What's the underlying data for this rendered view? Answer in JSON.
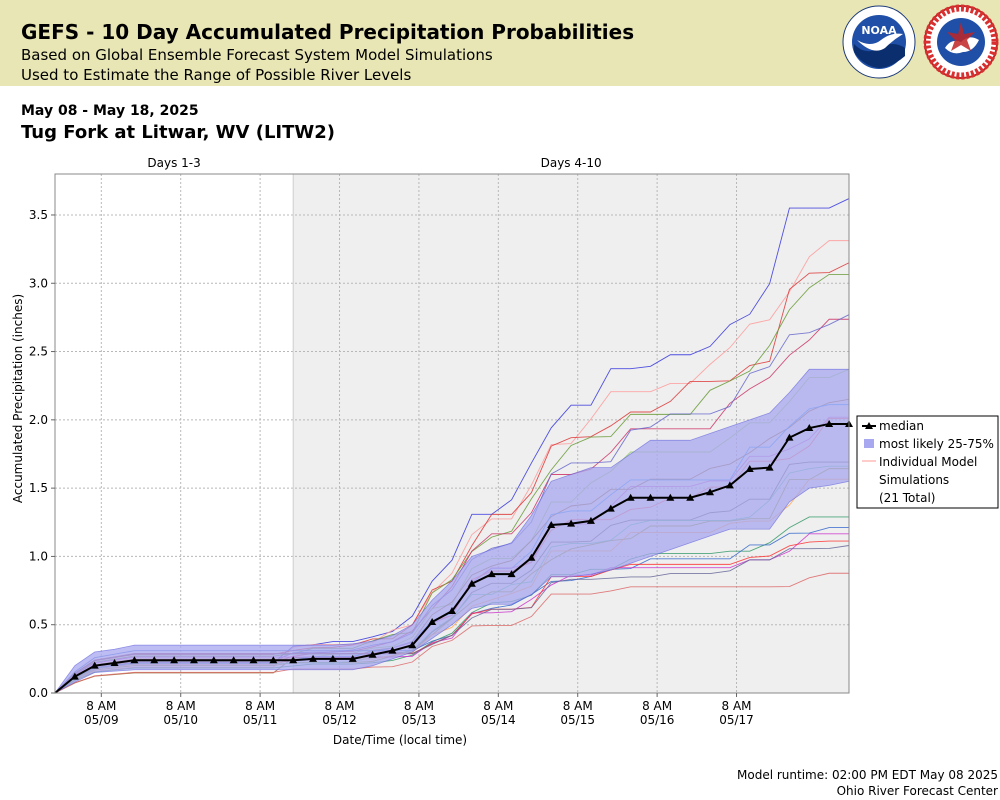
{
  "header": {
    "title": "GEFS - 10 Day Accumulated Precipitation Probabilities",
    "subtitle1": "Based on Global Ensemble Forecast System Model Simulations",
    "subtitle2": "Used to Estimate the Range of Possible River Levels",
    "noaa_logo_text": "NOAA",
    "nws_logo_text": "NATIONAL WEATHER SERVICE"
  },
  "date_range": "May 08 - May 18, 2025",
  "station": "Tug Fork at Litwar, WV (LITW2)",
  "footer": {
    "runtime": "Model runtime: 02:00 PM EDT May 08 2025",
    "center": "Ohio River Forecast Center"
  },
  "colors": {
    "banner": "#e8e6b4",
    "band_fill": "#a8a8f0",
    "band_edge": "#6a6ae0",
    "median": "#000000",
    "shade": "#efefef"
  },
  "chart_data": {
    "type": "line",
    "ylabel": "Accumulated Precipitation (inches)",
    "xlabel": "Date/Time (local time)",
    "ylim": [
      0,
      3.8
    ],
    "x_hours": [
      0,
      240
    ],
    "yticks": [
      0.0,
      0.5,
      1.0,
      1.5,
      2.0,
      2.5,
      3.0,
      3.5
    ],
    "xticks": [
      {
        "h": 14,
        "line1": "8 AM",
        "line2": "05/09"
      },
      {
        "h": 38,
        "line1": "8 AM",
        "line2": "05/10"
      },
      {
        "h": 62,
        "line1": "8 AM",
        "line2": "05/11"
      },
      {
        "h": 86,
        "line1": "8 AM",
        "line2": "05/12"
      },
      {
        "h": 110,
        "line1": "8 AM",
        "line2": "05/13"
      },
      {
        "h": 134,
        "line1": "8 AM",
        "line2": "05/14"
      },
      {
        "h": 158,
        "line1": "8 AM",
        "line2": "05/15"
      },
      {
        "h": 182,
        "line1": "8 AM",
        "line2": "05/16"
      },
      {
        "h": 206,
        "line1": "8 AM",
        "line2": "05/17"
      }
    ],
    "periods": [
      {
        "label": "Days 1-3",
        "start": 0,
        "end": 72,
        "shaded": false
      },
      {
        "label": "Days 4-10",
        "start": 72,
        "end": 240,
        "shaded": true
      }
    ],
    "legend": {
      "position": "right",
      "median": "median",
      "band": "most likely 25-75%",
      "members_line1": "Individual Model",
      "members_line2": "Simulations",
      "members_line3": "(21 Total)"
    },
    "median": {
      "x": [
        0,
        6,
        12,
        18,
        24,
        30,
        36,
        42,
        48,
        54,
        60,
        66,
        72,
        78,
        84,
        90,
        96,
        102,
        108,
        114,
        120,
        126,
        132,
        138,
        144,
        150,
        156,
        162,
        168,
        174,
        180,
        186,
        192,
        198,
        204,
        210,
        216,
        222,
        228,
        234,
        240
      ],
      "y": [
        0.0,
        0.12,
        0.2,
        0.22,
        0.24,
        0.24,
        0.24,
        0.24,
        0.24,
        0.24,
        0.24,
        0.24,
        0.24,
        0.25,
        0.25,
        0.25,
        0.28,
        0.31,
        0.35,
        0.52,
        0.6,
        0.8,
        0.87,
        0.87,
        0.99,
        1.23,
        1.24,
        1.26,
        1.35,
        1.43,
        1.43,
        1.43,
        1.43,
        1.47,
        1.52,
        1.64,
        1.65,
        1.87,
        1.94,
        1.97,
        1.97
      ]
    },
    "band_p25": [
      0.0,
      0.08,
      0.15,
      0.16,
      0.17,
      0.17,
      0.17,
      0.17,
      0.17,
      0.17,
      0.17,
      0.17,
      0.17,
      0.17,
      0.17,
      0.17,
      0.2,
      0.25,
      0.3,
      0.4,
      0.5,
      0.62,
      0.65,
      0.65,
      0.72,
      0.85,
      0.85,
      0.87,
      0.9,
      0.95,
      1.0,
      1.05,
      1.1,
      1.15,
      1.2,
      1.2,
      1.2,
      1.4,
      1.5,
      1.52,
      1.55
    ],
    "band_p75": [
      0.0,
      0.2,
      0.3,
      0.32,
      0.35,
      0.35,
      0.35,
      0.35,
      0.35,
      0.35,
      0.35,
      0.35,
      0.35,
      0.35,
      0.35,
      0.36,
      0.38,
      0.42,
      0.5,
      0.68,
      0.82,
      1.0,
      1.05,
      1.1,
      1.3,
      1.55,
      1.6,
      1.65,
      1.65,
      1.75,
      1.85,
      1.85,
      1.85,
      1.9,
      1.95,
      2.0,
      2.05,
      2.2,
      2.37,
      2.37,
      2.37
    ],
    "members": [
      {
        "color": "#3333dd",
        "final": 3.62
      },
      {
        "color": "#ff9999",
        "final": 3.3
      },
      {
        "color": "#dd3333",
        "final": 3.15
      },
      {
        "color": "#669933",
        "final": 3.0
      },
      {
        "color": "#cc3366",
        "final": 2.72
      },
      {
        "color": "#6666cc",
        "final": 2.77
      },
      {
        "color": "#99cc66",
        "final": 2.37
      },
      {
        "color": "#996633",
        "final": 2.15
      },
      {
        "color": "#3399ff",
        "final": 2.05
      },
      {
        "color": "#cc66cc",
        "final": 1.98
      },
      {
        "color": "#ff6666",
        "final": 1.92
      },
      {
        "color": "#666666",
        "final": 1.65
      },
      {
        "color": "#999933",
        "final": 1.55
      },
      {
        "color": "#66cc99",
        "final": 1.6
      },
      {
        "color": "#339966",
        "final": 1.22
      },
      {
        "color": "#3366cc",
        "final": 1.2
      },
      {
        "color": "#cc33cc",
        "final": 1.1
      },
      {
        "color": "#ff3333",
        "final": 1.08
      },
      {
        "color": "#666699",
        "final": 1.08
      },
      {
        "color": "#dd6666",
        "final": 0.82
      },
      {
        "color": "#ffaa55",
        "final": 1.5
      }
    ]
  }
}
